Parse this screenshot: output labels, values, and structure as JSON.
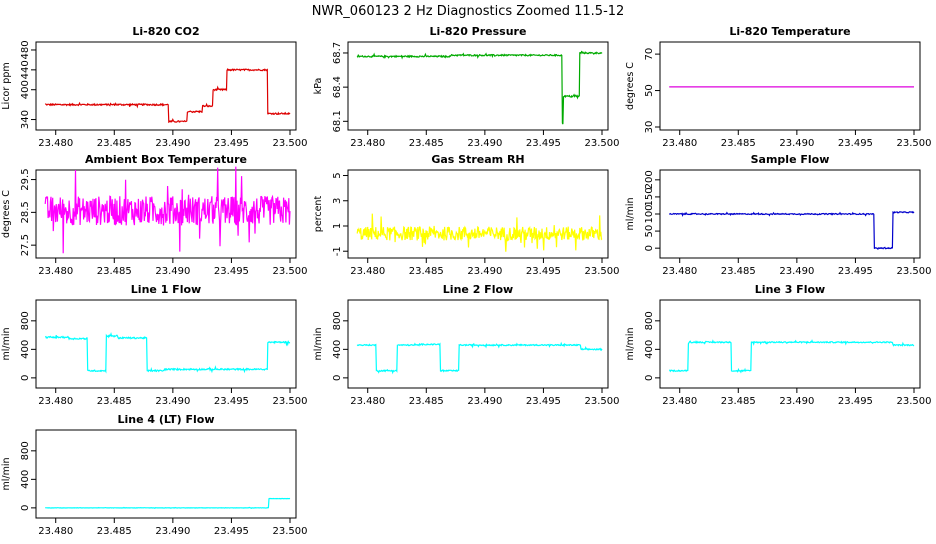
{
  "title": "NWR_060123  2 Hz Diagnostics Zoomed 11.5-12",
  "chart_data": [
    {
      "type": "line",
      "title": "Li-820 CO2",
      "ylabel": "Licor ppm",
      "xlim": [
        23.479,
        23.5
      ],
      "ylim": [
        325,
        490
      ],
      "xticks": [
        "23.480",
        "23.485",
        "23.490",
        "23.495",
        "23.500"
      ],
      "yticks": [
        340,
        400,
        440,
        480
      ],
      "color": "#dd0000",
      "noise": 1.5,
      "series": [
        {
          "steps": [
            [
              23.4791,
              370
            ],
            [
              23.4896,
              336
            ],
            [
              23.4912,
              356
            ],
            [
              23.4925,
              367
            ],
            [
              23.4934,
              400
            ],
            [
              23.4946,
              440
            ],
            [
              23.4981,
              352
            ],
            [
              23.5,
              352
            ]
          ]
        }
      ]
    },
    {
      "type": "line",
      "title": "Li-820 Pressure",
      "ylabel": "kPa",
      "xlim": [
        23.479,
        23.5
      ],
      "ylim": [
        68.05,
        68.77
      ],
      "xticks": [
        "23.480",
        "23.485",
        "23.490",
        "23.495",
        "23.500"
      ],
      "yticks": [
        "68.1",
        "68.4",
        "68.7"
      ],
      "color": "#00aa00",
      "noise": 0.006,
      "series": [
        {
          "steps": [
            [
              23.4791,
              68.67
            ],
            [
              23.4871,
              68.68
            ],
            [
              23.4955,
              68.68
            ],
            [
              23.4966,
              68.08
            ],
            [
              23.4967,
              68.32
            ],
            [
              23.4981,
              68.7
            ],
            [
              23.5,
              68.7
            ]
          ]
        }
      ]
    },
    {
      "type": "line",
      "title": "Li-820 Temperature",
      "ylabel": "degrees C",
      "xlim": [
        23.479,
        23.5
      ],
      "ylim": [
        30,
        75
      ],
      "xticks": [
        "23.480",
        "23.485",
        "23.490",
        "23.495",
        "23.500"
      ],
      "yticks": [
        30,
        50,
        70
      ],
      "color": "#dd00dd",
      "noise": 0,
      "series": [
        {
          "steps": [
            [
              23.4791,
              52
            ],
            [
              23.5,
              52
            ]
          ]
        }
      ]
    },
    {
      "type": "line",
      "title": "Ambient Box Temperature",
      "ylabel": "degrees C",
      "xlim": [
        23.479,
        23.5
      ],
      "ylim": [
        27.2,
        29.7
      ],
      "xticks": [
        "23.480",
        "23.485",
        "23.490",
        "23.495",
        "23.500"
      ],
      "yticks": [
        "27.5",
        "28.5",
        "29.5"
      ],
      "color": "#ff00ff",
      "noise": 0.45,
      "series": [
        {
          "steps": [
            [
              23.4791,
              28.55
            ],
            [
              23.5,
              28.55
            ]
          ]
        }
      ]
    },
    {
      "type": "line",
      "title": "Gas Stream RH",
      "ylabel": "percent",
      "xlim": [
        23.479,
        23.5
      ],
      "ylim": [
        -1.3,
        5.2
      ],
      "xticks": [
        "23.480",
        "23.485",
        "23.490",
        "23.495",
        "23.500"
      ],
      "yticks": [
        -1,
        1,
        3,
        5
      ],
      "color": "#ffff00",
      "noise": 0.55,
      "series": [
        {
          "steps": [
            [
              23.4791,
              0.4
            ],
            [
              23.5,
              0.4
            ]
          ]
        }
      ]
    },
    {
      "type": "line",
      "title": "Sample Flow",
      "ylabel": "ml/min",
      "xlim": [
        23.479,
        23.5
      ],
      "ylim": [
        -20,
        220
      ],
      "xticks": [
        "23.480",
        "23.485",
        "23.490",
        "23.495",
        "23.500"
      ],
      "yticks": [
        0,
        50,
        100,
        150,
        200
      ],
      "color": "#0000cc",
      "noise": 1.5,
      "series": [
        {
          "steps": [
            [
              23.4791,
              100
            ],
            [
              23.4966,
              0
            ],
            [
              23.4982,
              105
            ],
            [
              23.5,
              105
            ]
          ]
        }
      ]
    },
    {
      "type": "line",
      "title": "Line 1 Flow",
      "ylabel": "ml/min",
      "xlim": [
        23.479,
        23.5
      ],
      "ylim": [
        -100,
        1050
      ],
      "xticks": [
        "23.480",
        "23.485",
        "23.490",
        "23.495",
        "23.500"
      ],
      "yticks": [
        0,
        400,
        800
      ],
      "color": "#00ffff",
      "noise": 10,
      "series": [
        {
          "steps": [
            [
              23.4791,
              570
            ],
            [
              23.4811,
              550
            ],
            [
              23.4827,
              100
            ],
            [
              23.4843,
              590
            ],
            [
              23.4853,
              560
            ],
            [
              23.4878,
              100
            ],
            [
              23.4893,
              120
            ],
            [
              23.4981,
              500
            ],
            [
              23.5,
              500
            ]
          ]
        }
      ]
    },
    {
      "type": "line",
      "title": "Line 2 Flow",
      "ylabel": "ml/min",
      "xlim": [
        23.479,
        23.5
      ],
      "ylim": [
        -100,
        1050
      ],
      "xticks": [
        "23.480",
        "23.485",
        "23.490",
        "23.495",
        "23.500"
      ],
      "yticks": [
        0,
        400,
        800
      ],
      "color": "#00ffff",
      "noise": 8,
      "series": [
        {
          "steps": [
            [
              23.4791,
              460
            ],
            [
              23.4807,
              100
            ],
            [
              23.4825,
              460
            ],
            [
              23.4844,
              470
            ],
            [
              23.4862,
              100
            ],
            [
              23.4878,
              460
            ],
            [
              23.4982,
              400
            ],
            [
              23.5,
              400
            ]
          ]
        }
      ]
    },
    {
      "type": "line",
      "title": "Line 3 Flow",
      "ylabel": "ml/min",
      "xlim": [
        23.479,
        23.5
      ],
      "ylim": [
        -100,
        1050
      ],
      "xticks": [
        "23.480",
        "23.485",
        "23.490",
        "23.495",
        "23.500"
      ],
      "yticks": [
        0,
        400,
        800
      ],
      "color": "#00ffff",
      "noise": 8,
      "series": [
        {
          "steps": [
            [
              23.4791,
              100
            ],
            [
              23.4807,
              500
            ],
            [
              23.4844,
              100
            ],
            [
              23.4861,
              500
            ],
            [
              23.4982,
              460
            ],
            [
              23.5,
              460
            ]
          ]
        }
      ]
    },
    {
      "type": "line",
      "title": "Line 4 (LT) Flow",
      "ylabel": "ml/min",
      "xlim": [
        23.479,
        23.5
      ],
      "ylim": [
        -100,
        1050
      ],
      "xticks": [
        "23.480",
        "23.485",
        "23.490",
        "23.495",
        "23.500"
      ],
      "yticks": [
        0,
        400,
        800
      ],
      "color": "#00ffff",
      "noise": 2,
      "series": [
        {
          "steps": [
            [
              23.4791,
              0
            ],
            [
              23.4982,
              130
            ],
            [
              23.5,
              130
            ]
          ]
        }
      ]
    }
  ]
}
